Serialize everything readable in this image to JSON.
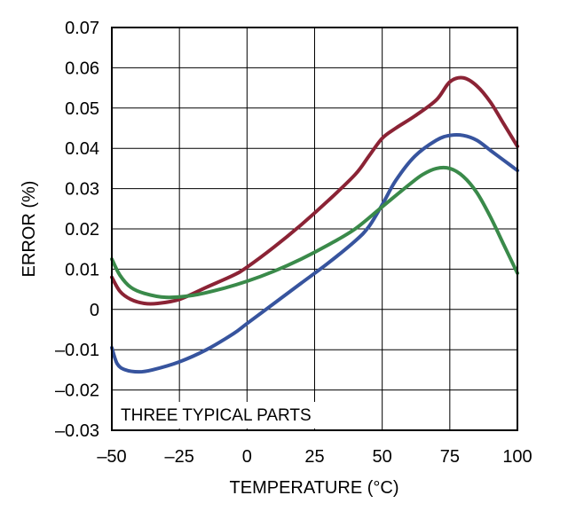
{
  "chart_data": {
    "type": "line",
    "title": "",
    "xlabel": "TEMPERATURE (°C)",
    "ylabel": "ERROR (%)",
    "xlim": [
      -50,
      100
    ],
    "ylim": [
      -0.03,
      0.07
    ],
    "grid": true,
    "x_ticks": [
      -50,
      -25,
      0,
      25,
      50,
      75,
      100
    ],
    "x_tick_labels": [
      "–50",
      "–25",
      "0",
      "25",
      "50",
      "75",
      "100"
    ],
    "y_ticks": [
      -0.03,
      -0.02,
      -0.01,
      0,
      0.01,
      0.02,
      0.03,
      0.04,
      0.05,
      0.06,
      0.07
    ],
    "y_tick_labels": [
      "–0.03",
      "–0.02",
      "–0.01",
      "0",
      "0.01",
      "0.02",
      "0.03",
      "0.04",
      "0.05",
      "0.06",
      "0.07"
    ],
    "annotation": "THREE TYPICAL PARTS",
    "series": [
      {
        "color": "#8b2335",
        "points": [
          [
            -50,
            0.008
          ],
          [
            -47,
            0.0045
          ],
          [
            -43,
            0.0025
          ],
          [
            -38,
            0.0015
          ],
          [
            -33,
            0.0015
          ],
          [
            -25,
            0.0025
          ],
          [
            -15,
            0.0055
          ],
          [
            -5,
            0.0085
          ],
          [
            0,
            0.0105
          ],
          [
            10,
            0.0155
          ],
          [
            20,
            0.021
          ],
          [
            30,
            0.027
          ],
          [
            40,
            0.0335
          ],
          [
            45,
            0.038
          ],
          [
            50,
            0.0425
          ],
          [
            55,
            0.045
          ],
          [
            62,
            0.048
          ],
          [
            70,
            0.052
          ],
          [
            75,
            0.0565
          ],
          [
            80,
            0.0575
          ],
          [
            85,
            0.0555
          ],
          [
            90,
            0.0515
          ],
          [
            95,
            0.046
          ],
          [
            100,
            0.0405
          ]
        ]
      },
      {
        "color": "#37549e",
        "points": [
          [
            -50,
            -0.0095
          ],
          [
            -48,
            -0.0135
          ],
          [
            -45,
            -0.015
          ],
          [
            -40,
            -0.0155
          ],
          [
            -35,
            -0.015
          ],
          [
            -25,
            -0.013
          ],
          [
            -15,
            -0.01
          ],
          [
            -5,
            -0.006
          ],
          [
            0,
            -0.0035
          ],
          [
            10,
            0.0015
          ],
          [
            20,
            0.0065
          ],
          [
            30,
            0.0115
          ],
          [
            40,
            0.017
          ],
          [
            45,
            0.0205
          ],
          [
            50,
            0.026
          ],
          [
            55,
            0.032
          ],
          [
            62,
            0.038
          ],
          [
            70,
            0.042
          ],
          [
            75,
            0.0432
          ],
          [
            80,
            0.0432
          ],
          [
            85,
            0.042
          ],
          [
            90,
            0.0395
          ],
          [
            95,
            0.037
          ],
          [
            100,
            0.0345
          ]
        ]
      },
      {
        "color": "#3a8a4a",
        "points": [
          [
            -50,
            0.0125
          ],
          [
            -47,
            0.0085
          ],
          [
            -43,
            0.0055
          ],
          [
            -38,
            0.004
          ],
          [
            -30,
            0.003
          ],
          [
            -20,
            0.0035
          ],
          [
            -10,
            0.005
          ],
          [
            0,
            0.007
          ],
          [
            10,
            0.0095
          ],
          [
            20,
            0.0125
          ],
          [
            30,
            0.016
          ],
          [
            40,
            0.02
          ],
          [
            50,
            0.0255
          ],
          [
            60,
            0.031
          ],
          [
            65,
            0.0335
          ],
          [
            70,
            0.035
          ],
          [
            75,
            0.035
          ],
          [
            80,
            0.033
          ],
          [
            85,
            0.029
          ],
          [
            90,
            0.023
          ],
          [
            95,
            0.016
          ],
          [
            100,
            0.009
          ]
        ]
      }
    ]
  }
}
